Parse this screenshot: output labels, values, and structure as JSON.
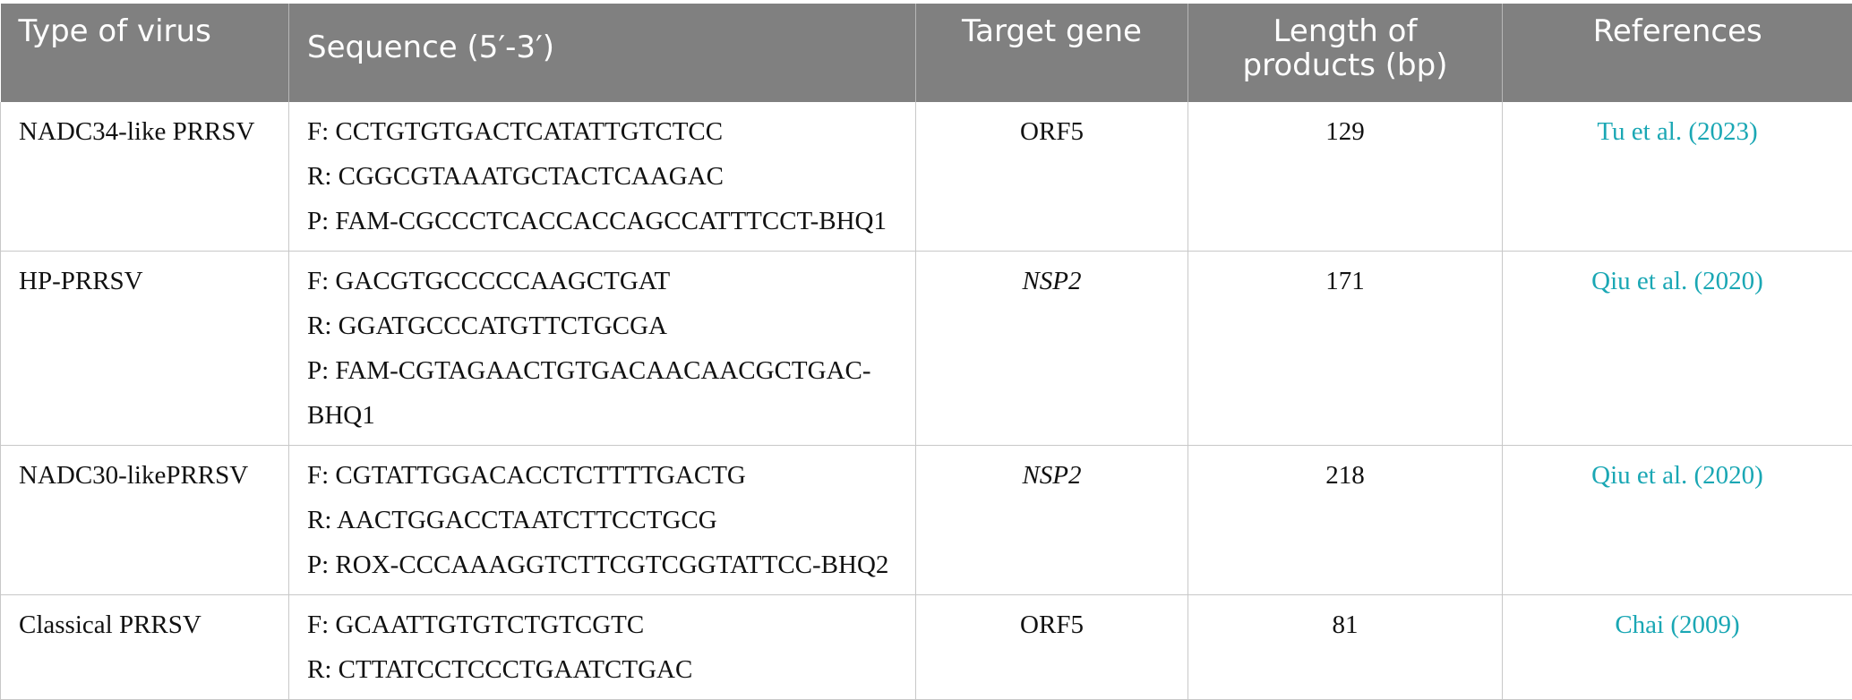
{
  "headers": {
    "type": "Type of virus",
    "sequence": "Sequence (5′-3′)",
    "target": "Target gene",
    "length_line1": "Length of",
    "length_line2": "products (bp)",
    "references": "References"
  },
  "rows": [
    {
      "type": "NADC34-like PRRSV",
      "seq": [
        "F: CCTGTGTGACTCATATTGTCTCC",
        "R: CGGCGTAAATGCTACTCAAGAC",
        "P: FAM-CGCCCTCACCACCAGCCATTTCCT-BHQ1"
      ],
      "target": "ORF5",
      "target_italic": false,
      "length": "129",
      "ref": "Tu et al. (2023)"
    },
    {
      "type": "HP-PRRSV",
      "seq": [
        "F: GACGTGCCCCCAAGCTGAT",
        "R: GGATGCCCATGTTCTGCGA",
        "P: FAM-CGTAGAACTGTGACAACAACGCTGAC-",
        "BHQ1"
      ],
      "target": "NSP2",
      "target_italic": true,
      "length": "171",
      "ref": "Qiu et al. (2020)"
    },
    {
      "type": "NADC30-likePRRSV",
      "seq": [
        "F: CGTATTGGACACCTCTTTTGACTG",
        "R: AACTGGACCTAATCTTCCTGCG",
        "P: ROX-CCCAAAGGTCTTCGTCGGTATTCC-BHQ2"
      ],
      "target": "NSP2",
      "target_italic": true,
      "length": "218",
      "ref": "Qiu et al. (2020)"
    },
    {
      "type": "Classical PRRSV",
      "seq": [
        "F: GCAATTGTGTCTGTCGTC",
        "R: CTTATCCTCCCTGAATCTGAC"
      ],
      "target": "ORF5",
      "target_italic": false,
      "length": "81",
      "ref": "Chai (2009)"
    }
  ],
  "colors": {
    "header_bg": "#808080",
    "header_text": "#ffffff",
    "link": "#1aa7b4",
    "border": "#c8c8c8"
  }
}
